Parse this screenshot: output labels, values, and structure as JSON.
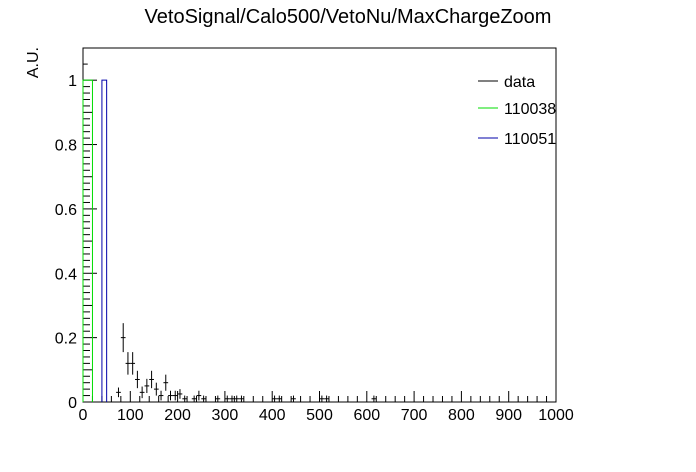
{
  "chart_data": {
    "type": "histogram",
    "title": "VetoSignal/Calo500/VetoNu/MaxChargeZoom",
    "xlabel": "",
    "ylabel": "A.U.",
    "xlim": [
      0,
      1000
    ],
    "ylim": [
      0,
      1.1
    ],
    "x_ticks": [
      0,
      100,
      200,
      300,
      400,
      500,
      600,
      700,
      800,
      900,
      1000
    ],
    "y_ticks": [
      0,
      0.2,
      0.4,
      0.6,
      0.8,
      1
    ],
    "legend_position": "top-right",
    "series": [
      {
        "name": "data",
        "style": "points-with-errors",
        "color": "#000000",
        "bin_width": 10,
        "points": [
          {
            "x": 5,
            "y": 1.05,
            "err": 0
          },
          {
            "x": 75,
            "y": 0.03,
            "err": 0.015
          },
          {
            "x": 85,
            "y": 0.2,
            "err": 0.045
          },
          {
            "x": 95,
            "y": 0.12,
            "err": 0.035
          },
          {
            "x": 105,
            "y": 0.12,
            "err": 0.035
          },
          {
            "x": 115,
            "y": 0.07,
            "err": 0.027
          },
          {
            "x": 125,
            "y": 0.03,
            "err": 0.018
          },
          {
            "x": 135,
            "y": 0.05,
            "err": 0.022
          },
          {
            "x": 145,
            "y": 0.07,
            "err": 0.027
          },
          {
            "x": 155,
            "y": 0.04,
            "err": 0.02
          },
          {
            "x": 165,
            "y": 0.02,
            "err": 0.015
          },
          {
            "x": 175,
            "y": 0.06,
            "err": 0.025
          },
          {
            "x": 185,
            "y": 0.02,
            "err": 0.015
          },
          {
            "x": 195,
            "y": 0.02,
            "err": 0.015
          },
          {
            "x": 205,
            "y": 0.025,
            "err": 0.015
          },
          {
            "x": 215,
            "y": 0.01,
            "err": 0.01
          },
          {
            "x": 235,
            "y": 0.01,
            "err": 0.01
          },
          {
            "x": 245,
            "y": 0.02,
            "err": 0.015
          },
          {
            "x": 255,
            "y": 0.01,
            "err": 0.01
          },
          {
            "x": 285,
            "y": 0.01,
            "err": 0.01
          },
          {
            "x": 305,
            "y": 0.01,
            "err": 0.01
          },
          {
            "x": 315,
            "y": 0.01,
            "err": 0.01
          },
          {
            "x": 325,
            "y": 0.01,
            "err": 0.01
          },
          {
            "x": 335,
            "y": 0.01,
            "err": 0.01
          },
          {
            "x": 405,
            "y": 0.01,
            "err": 0.01
          },
          {
            "x": 415,
            "y": 0.01,
            "err": 0.01
          },
          {
            "x": 445,
            "y": 0.01,
            "err": 0.01
          },
          {
            "x": 505,
            "y": 0.01,
            "err": 0.01
          },
          {
            "x": 515,
            "y": 0.01,
            "err": 0.01
          },
          {
            "x": 615,
            "y": 0.01,
            "err": 0.01
          }
        ]
      },
      {
        "name": "110038",
        "style": "step",
        "color": "#00dd00",
        "bins": [
          {
            "x0": 0,
            "x1": 20,
            "y": 1.0
          }
        ]
      },
      {
        "name": "110051",
        "style": "step",
        "color": "#0000aa",
        "bins": [
          {
            "x0": 40,
            "x1": 50,
            "y": 1.0
          }
        ]
      }
    ]
  }
}
